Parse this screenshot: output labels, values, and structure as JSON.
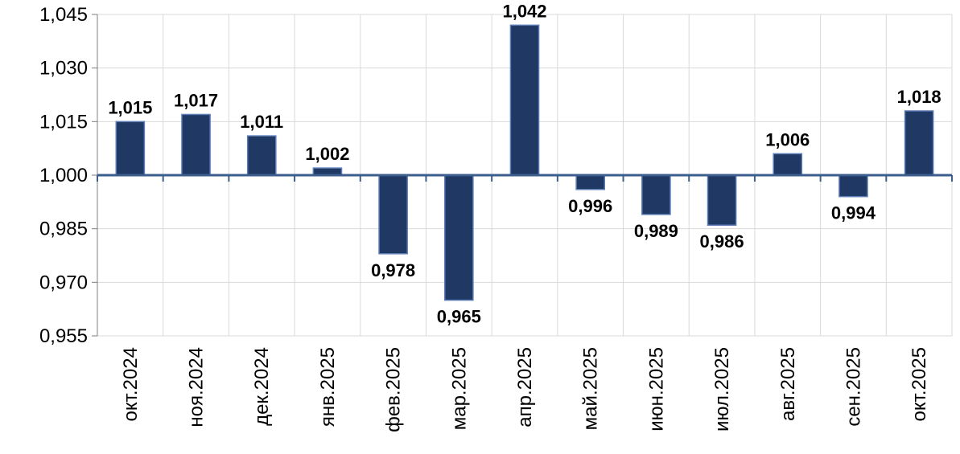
{
  "chart_data": {
    "type": "bar",
    "title": "",
    "xlabel": "",
    "ylabel": "",
    "categories": [
      "окт.2024",
      "ноя.2024",
      "дек.2024",
      "янв.2025",
      "фев.2025",
      "мар.2025",
      "апр.2025",
      "май.2025",
      "июн.2025",
      "июл.2025",
      "авг.2025",
      "сен.2025",
      "окт.2025"
    ],
    "values": [
      1.015,
      1.017,
      1.011,
      1.002,
      0.978,
      0.965,
      1.042,
      0.996,
      0.989,
      0.986,
      1.006,
      0.994,
      1.018
    ],
    "data_labels": [
      "1,015",
      "1,017",
      "1,011",
      "1,002",
      "0,978",
      "0,965",
      "1,042",
      "0,996",
      "0,989",
      "0,986",
      "1,006",
      "0,994",
      "1,018"
    ],
    "baseline": 1.0,
    "ylim": [
      0.955,
      1.045
    ],
    "yticks": [
      0.955,
      0.97,
      0.985,
      1.0,
      1.015,
      1.03,
      1.045
    ],
    "ytick_labels": [
      "0,955",
      "0,970",
      "0,985",
      "1,000",
      "1,015",
      "1,030",
      "1,045"
    ],
    "grid": true,
    "legend": "none",
    "colors": {
      "bar": "#1F3864",
      "bar_edge": "#5B7DB5",
      "baseline": "#3B5E8C",
      "grid": "#D9D9D9",
      "axis": "#7F7F7F"
    }
  }
}
